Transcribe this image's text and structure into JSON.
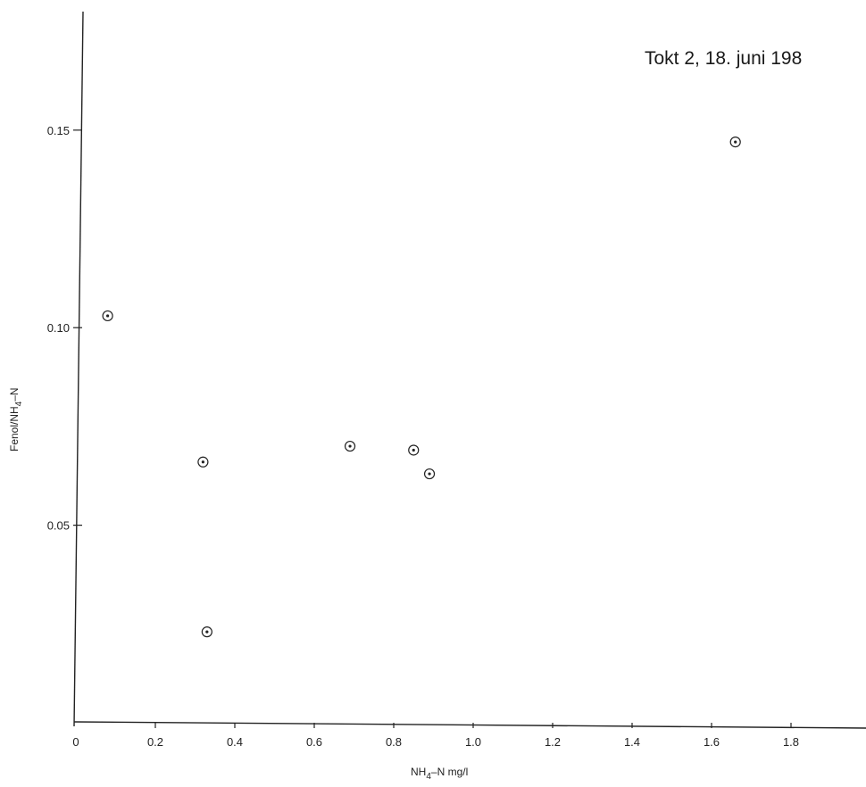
{
  "chart_data": {
    "type": "scatter",
    "title": "Tokt 2, 18. juni 198",
    "xlabel": "NH",
    "xlabel_sub": "4",
    "xlabel_rest": "–N  mg/l",
    "ylabel": "Fenol/NH",
    "ylabel_sub": "4",
    "ylabel_rest": "–N",
    "xlim": [
      0,
      2.0
    ],
    "ylim": [
      0,
      0.18
    ],
    "x_ticks": [
      0,
      0.2,
      0.4,
      0.6,
      0.8,
      1.0,
      1.2,
      1.4,
      1.6,
      1.8
    ],
    "x_tick_labels": [
      "0",
      "0.2",
      "0.4",
      "0.6",
      "0.8",
      "1.0",
      "1.2",
      "1.4",
      "1.6",
      "1.8"
    ],
    "y_ticks": [
      0.05,
      0.1,
      0.15
    ],
    "y_tick_labels": [
      "0.05",
      "0.10",
      "0.15"
    ],
    "grid": false,
    "points": [
      {
        "x": 0.08,
        "y": 0.103
      },
      {
        "x": 0.32,
        "y": 0.066
      },
      {
        "x": 0.33,
        "y": 0.023
      },
      {
        "x": 0.69,
        "y": 0.07
      },
      {
        "x": 0.85,
        "y": 0.069
      },
      {
        "x": 0.89,
        "y": 0.063
      },
      {
        "x": 1.66,
        "y": 0.147
      }
    ]
  }
}
